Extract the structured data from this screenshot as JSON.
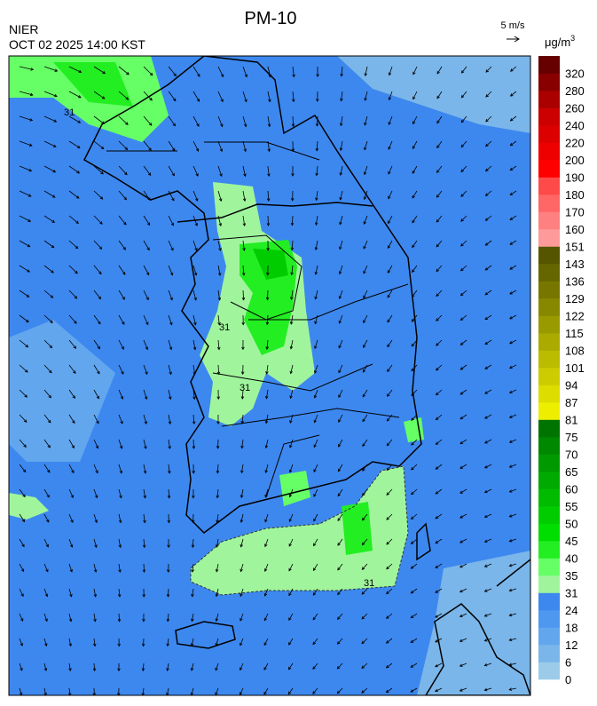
{
  "header": {
    "title": "PM-10",
    "agency": "NIER",
    "timestamp": "OCT 02 2025 14:00 KST"
  },
  "wind_reference": {
    "label": "5 m/s"
  },
  "colorbar": {
    "unit": {
      "base": "μg/m",
      "sup": "3"
    },
    "levels": [
      0,
      6,
      12,
      18,
      24,
      31,
      35,
      40,
      45,
      50,
      55,
      60,
      65,
      70,
      75,
      81,
      87,
      94,
      101,
      108,
      115,
      122,
      129,
      136,
      143,
      151,
      160,
      170,
      180,
      190,
      200,
      220,
      240,
      260,
      280,
      320
    ],
    "colors": [
      "#9ccbe9",
      "#7ab6ea",
      "#62a6ee",
      "#4f98f0",
      "#3d88ef",
      "#a0f59c",
      "#66ff66",
      "#22ee22",
      "#00dd00",
      "#00cc00",
      "#00bb00",
      "#00aa00",
      "#009900",
      "#008800",
      "#007400",
      "#eeee00",
      "#dddd00",
      "#cccc00",
      "#bbbb00",
      "#aaaa00",
      "#999900",
      "#888800",
      "#777700",
      "#666600",
      "#555500",
      "#ff9a9a",
      "#ff8080",
      "#ff6666",
      "#ff4a4a",
      "#ff0000",
      "#ee0000",
      "#dd0000",
      "#cc0000",
      "#aa0000",
      "#880000",
      "#660000"
    ]
  },
  "map": {
    "contour_labels": [
      "31",
      "31",
      "31",
      "31"
    ]
  }
}
